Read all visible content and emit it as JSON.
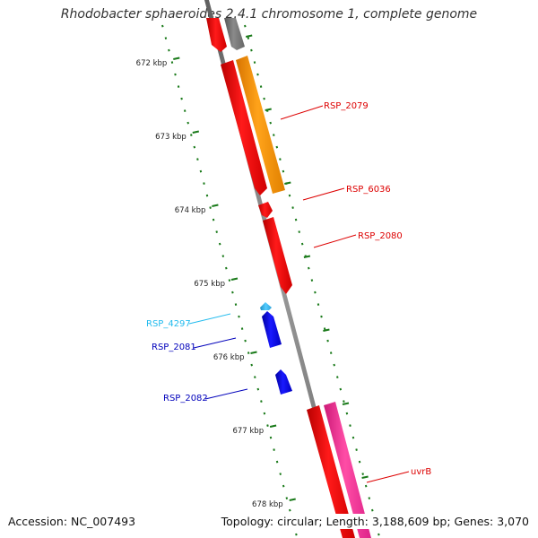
{
  "title": "Rhodobacter sphaeroides 2.4.1 chromosome 1, complete genome",
  "footer": {
    "accession": "Accession: NC_007493",
    "summary": "Topology: circular; Length: 3,188,609 bp; Genes: 3,070"
  },
  "ticks": [
    "672 kbp",
    "673 kbp",
    "674 kbp",
    "675 kbp",
    "676 kbp",
    "677 kbp",
    "678 kbp"
  ],
  "genes": [
    {
      "name": "RSP_2079",
      "color": "#ff8c00"
    },
    {
      "name": "RSP_6036",
      "color": "#ee0000"
    },
    {
      "name": "RSP_2080",
      "color": "#ee0000"
    },
    {
      "name": "RSP_4297",
      "color": "#33bbee"
    },
    {
      "name": "RSP_2081",
      "color": "#0000cc"
    },
    {
      "name": "RSP_2082",
      "color": "#0000cc"
    },
    {
      "name": "uvrB",
      "color": "#ee0000"
    }
  ],
  "colors": {
    "backbone": "#808080",
    "tick": "#1a7a1a",
    "red_gene": "#ff0000",
    "orange_gene": "#ff9900",
    "blue_gene": "#0000ee",
    "cyan_gene": "#33bbee",
    "pink_gene": "#ff3399",
    "gray_gene": "#777777"
  }
}
